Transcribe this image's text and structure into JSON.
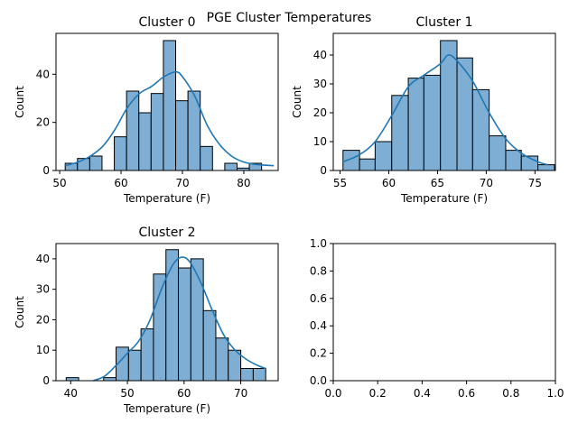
{
  "figure": {
    "suptitle": "PGE Cluster Temperatures"
  },
  "chart_data": [
    {
      "type": "bar",
      "title": "Cluster 0",
      "xlabel": "Temperature (F)",
      "ylabel": "Count",
      "xlim": [
        49.4,
        85.6
      ],
      "ylim": [
        0,
        57
      ],
      "xticks": [
        50,
        60,
        70,
        80
      ],
      "yticks": [
        0,
        20,
        40
      ],
      "bin_edges": [
        50.9,
        52.9,
        54.9,
        56.9,
        58.9,
        60.9,
        62.9,
        64.9,
        66.9,
        68.9,
        70.9,
        72.9,
        74.9,
        76.9,
        78.9,
        80.9,
        82.9,
        84.9
      ],
      "values": [
        3,
        5,
        6,
        0,
        14,
        33,
        24,
        32,
        54,
        29,
        33,
        10,
        0,
        3,
        1,
        3,
        0
      ],
      "kde_x": [
        50.9,
        53,
        55,
        57,
        59,
        61,
        63,
        65,
        67,
        68.9,
        70,
        72,
        74,
        76,
        78,
        80,
        82,
        84.9
      ],
      "kde_y": [
        2,
        3.5,
        6,
        10,
        17,
        26,
        32,
        35,
        39,
        41,
        39,
        31,
        19,
        11,
        6,
        3.5,
        2.5,
        2
      ]
    },
    {
      "type": "bar",
      "title": "Cluster 1",
      "xlabel": "Temperature (F)",
      "ylabel": "Count",
      "xlim": [
        54.3,
        77.1
      ],
      "ylim": [
        0,
        47.5
      ],
      "xticks": [
        55,
        60,
        65,
        70,
        75
      ],
      "yticks": [
        0,
        10,
        20,
        30,
        40
      ],
      "bin_edges": [
        55.3,
        57,
        58.6,
        60.3,
        62,
        63.6,
        65.3,
        67,
        68.6,
        70.3,
        72,
        73.6,
        75.3,
        77
      ],
      "values": [
        7,
        4,
        10,
        26,
        32,
        33,
        45,
        39,
        28,
        12,
        7,
        5,
        2
      ],
      "kde_x": [
        55.3,
        57,
        58.6,
        60.3,
        62,
        63.6,
        65.3,
        66.1,
        67,
        68.6,
        70.3,
        72,
        73.6,
        75.3,
        76.3
      ],
      "kde_y": [
        3,
        5.5,
        10,
        19,
        29,
        33,
        37,
        40,
        38,
        31,
        20,
        11,
        6,
        3,
        2
      ]
    },
    {
      "type": "bar",
      "title": "Cluster 2",
      "xlabel": "Temperature (F)",
      "ylabel": "Count",
      "xlim": [
        37.4,
        76.6
      ],
      "ylim": [
        0,
        45
      ],
      "xticks": [
        40,
        50,
        60,
        70
      ],
      "yticks": [
        0,
        10,
        20,
        30,
        40
      ],
      "bin_edges": [
        39.2,
        41.4,
        43.6,
        45.8,
        48,
        50.2,
        52.4,
        54.6,
        56.8,
        59,
        61.2,
        63.4,
        65.6,
        67.8,
        70,
        72.2,
        74.4
      ],
      "values": [
        1,
        0,
        0,
        1,
        11,
        10,
        17,
        35,
        43,
        37,
        40,
        23,
        14,
        10,
        4,
        4
      ],
      "kde_x": [
        44,
        46,
        48,
        50,
        52,
        54,
        56,
        58,
        59.5,
        61,
        63,
        65,
        67,
        69,
        71,
        73,
        74.4
      ],
      "kde_y": [
        0,
        1.5,
        5,
        9,
        13,
        20,
        30,
        38,
        40.5,
        39,
        32,
        23,
        15,
        10,
        7,
        5,
        4
      ]
    },
    {
      "type": "empty",
      "title": "",
      "xlim": [
        0,
        1
      ],
      "ylim": [
        0,
        1
      ],
      "xticks": [
        0.0,
        0.2,
        0.4,
        0.6,
        0.8,
        1.0
      ],
      "yticks": [
        0.0,
        0.2,
        0.4,
        0.6,
        0.8,
        1.0
      ],
      "xtick_labels": [
        "0.0",
        "0.2",
        "0.4",
        "0.6",
        "0.8",
        "1.0"
      ],
      "ytick_labels": [
        "0.0",
        "0.2",
        "0.4",
        "0.6",
        "0.8",
        "1.0"
      ]
    }
  ]
}
